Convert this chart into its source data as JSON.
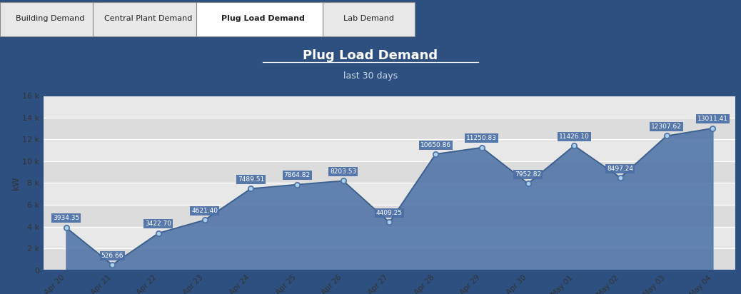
{
  "title": "Plug Load Demand",
  "subtitle": "last 30 days",
  "tabs": [
    "Building Demand",
    "Central Plant Demand",
    "Plug Load Demand",
    "Lab Demand"
  ],
  "active_tab": "Plug Load Demand",
  "ylabel": "kW",
  "x_labels": [
    "Apr 20",
    "Apr 21",
    "Apr 22",
    "Apr 23",
    "Apr 24",
    "Apr 25",
    "Apr 26",
    "Apr 27",
    "Apr 28",
    "Apr 29",
    "Apr 30",
    "May 01",
    "May 02",
    "May 03",
    "May 04"
  ],
  "y_values": [
    3934.35,
    526.66,
    3422.7,
    4621.4,
    7489.51,
    7864.82,
    8203.53,
    4409.25,
    10650.86,
    11250.83,
    7952.82,
    11426.1,
    8497.24,
    12307.62,
    13011.41
  ],
  "ylim": [
    0,
    16000
  ],
  "yticks": [
    0,
    2000,
    4000,
    6000,
    8000,
    10000,
    12000,
    14000,
    16000
  ],
  "ytick_labels": [
    "0",
    "2 k",
    "4 k",
    "6 k",
    "8 k",
    "10 k",
    "12 k",
    "14 k",
    "16 k"
  ],
  "area_color": "#4a6fa5",
  "area_alpha": 0.85,
  "line_color": "#3a5f8a",
  "marker_color": "#a8d0e8",
  "marker_edge_color": "#4a6fa5",
  "label_bg_color": "#4a6fa5",
  "label_text_color": "#ffffff",
  "header_bg_color": "#2d5080",
  "plot_bg_color": "#e8e8e8",
  "outer_bg_color": "#2d5080",
  "title_color": "#ffffff",
  "subtitle_color": "#c8d8e8",
  "band_colors": [
    "#dcdcdc",
    "#e8e8e8"
  ]
}
